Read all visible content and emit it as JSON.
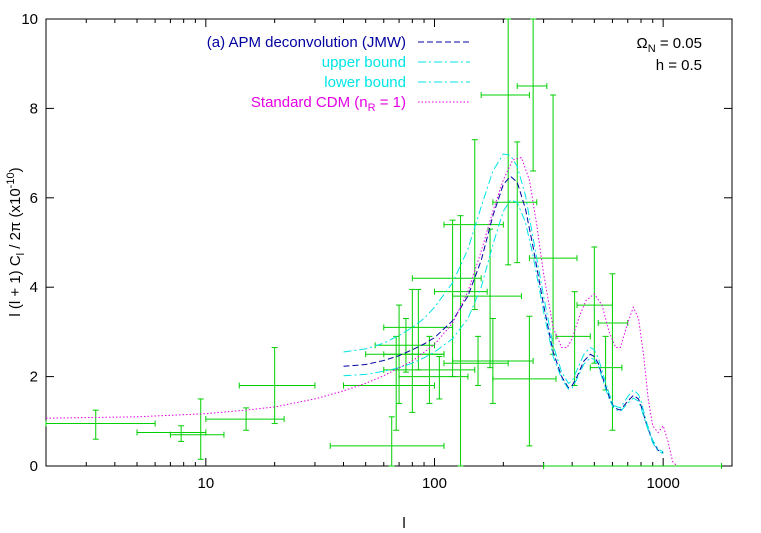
{
  "chart_data": {
    "type": "line",
    "xlabel": "l",
    "ylabel": {
      "pre": "l (l + 1) C",
      "sub": "l",
      "mid": " / 2π  (x10",
      "sup": "-10",
      "post": ")"
    },
    "xscale": "log",
    "xlim": [
      2,
      2000
    ],
    "ylim": [
      0,
      10
    ],
    "x_ticks": [
      {
        "value": 10,
        "label": "10"
      },
      {
        "value": 100,
        "label": "100"
      },
      {
        "value": 1000,
        "label": "1000"
      }
    ],
    "y_ticks": [
      {
        "value": 0,
        "label": "0"
      },
      {
        "value": 2,
        "label": "2"
      },
      {
        "value": 4,
        "label": "4"
      },
      {
        "value": 6,
        "label": "6"
      },
      {
        "value": 8,
        "label": "8"
      },
      {
        "value": 10,
        "label": "10"
      }
    ],
    "annotations": [
      {
        "parts": [
          {
            "t": "Ω"
          },
          {
            "t": "N",
            "sub": true
          },
          {
            "t": " = 0.05"
          }
        ]
      },
      {
        "parts": [
          {
            "t": "h = 0.5"
          }
        ]
      }
    ],
    "legend_position": "top-left-center",
    "series": [
      {
        "name": "(a) APM deconvolution (JMW)",
        "color": "#0000a0",
        "dash": "6,3",
        "x": [
          40,
          50,
          60,
          70,
          80,
          90,
          100,
          120,
          140,
          160,
          180,
          200,
          215,
          230,
          250,
          270,
          300,
          330,
          360,
          385,
          400,
          420,
          450,
          480,
          500,
          520,
          550,
          580,
          610,
          650,
          700,
          740,
          780,
          800,
          850,
          900,
          950,
          1000
        ],
        "y": [
          2.23,
          2.27,
          2.36,
          2.47,
          2.6,
          2.73,
          2.87,
          3.25,
          3.8,
          4.6,
          5.6,
          6.3,
          6.48,
          6.35,
          5.75,
          4.9,
          3.6,
          2.55,
          2.0,
          1.75,
          1.8,
          2.0,
          2.35,
          2.5,
          2.45,
          2.3,
          1.9,
          1.55,
          1.3,
          1.25,
          1.45,
          1.58,
          1.5,
          1.35,
          0.9,
          0.55,
          0.35,
          0.3
        ]
      },
      {
        "name": "upper bound",
        "color": "#00e5e5",
        "dash": "8,3,2,3",
        "x": [
          40,
          50,
          60,
          70,
          80,
          90,
          100,
          120,
          140,
          160,
          180,
          200,
          215,
          230,
          250,
          270,
          300,
          330,
          360,
          385,
          400,
          420,
          450,
          480,
          500,
          520,
          550,
          580,
          610,
          650,
          700,
          740,
          780,
          800,
          850,
          900,
          950,
          1000
        ],
        "y": [
          2.55,
          2.62,
          2.75,
          2.92,
          3.1,
          3.3,
          3.55,
          4.1,
          4.85,
          5.8,
          6.6,
          6.98,
          6.95,
          6.7,
          6.05,
          5.1,
          3.8,
          2.7,
          2.1,
          1.85,
          1.9,
          2.15,
          2.5,
          2.65,
          2.6,
          2.42,
          2.0,
          1.62,
          1.35,
          1.3,
          1.55,
          1.7,
          1.6,
          1.45,
          0.95,
          0.58,
          0.38,
          0.32
        ]
      },
      {
        "name": "lower bound",
        "color": "#00e5e5",
        "dash": "8,3,2,3",
        "x": [
          40,
          50,
          60,
          70,
          80,
          90,
          100,
          120,
          140,
          160,
          180,
          200,
          215,
          230,
          250,
          270,
          300,
          330,
          360,
          385,
          400,
          420,
          450,
          480,
          500,
          520,
          550,
          580,
          610,
          650,
          700,
          740,
          780,
          800,
          850,
          900,
          950,
          1000
        ],
        "y": [
          2.02,
          2.05,
          2.12,
          2.2,
          2.3,
          2.42,
          2.55,
          2.85,
          3.3,
          4.0,
          4.95,
          5.7,
          5.95,
          5.9,
          5.45,
          4.7,
          3.45,
          2.45,
          1.95,
          1.72,
          1.75,
          1.95,
          2.28,
          2.42,
          2.38,
          2.25,
          1.85,
          1.5,
          1.28,
          1.22,
          1.4,
          1.52,
          1.45,
          1.3,
          0.88,
          0.52,
          0.33,
          0.28
        ]
      },
      {
        "name": "Standard CDM (n_R = 1)",
        "name_parts": [
          {
            "t": "Standard CDM (n"
          },
          {
            "t": "R",
            "sub": true
          },
          {
            "t": " = 1)"
          }
        ],
        "color": "#e500e5",
        "dash": "1.5,2",
        "x": [
          2,
          5,
          10,
          15,
          20,
          30,
          40,
          50,
          60,
          80,
          100,
          120,
          140,
          160,
          180,
          200,
          220,
          240,
          260,
          280,
          300,
          330,
          360,
          380,
          400,
          430,
          460,
          500,
          540,
          580,
          620,
          650,
          700,
          740,
          780,
          820,
          860,
          900,
          950,
          1000,
          1050,
          1100,
          1150
        ],
        "y": [
          1.07,
          1.1,
          1.17,
          1.25,
          1.32,
          1.5,
          1.68,
          1.85,
          2.02,
          2.35,
          2.72,
          3.2,
          3.9,
          4.8,
          5.7,
          6.4,
          6.85,
          6.9,
          6.4,
          5.4,
          4.3,
          3.1,
          2.65,
          2.65,
          2.85,
          3.35,
          3.7,
          3.85,
          3.6,
          3.0,
          2.65,
          2.65,
          3.2,
          3.55,
          3.3,
          2.5,
          1.5,
          0.9,
          0.75,
          0.9,
          0.55,
          0.1,
          0.0
        ]
      }
    ],
    "data_points": {
      "name": "data",
      "color": "#00d000",
      "points": [
        {
          "x": 3.3,
          "xlo": 2.0,
          "xhi": 6.0,
          "y": 0.95,
          "ylo": 0.6,
          "yhi": 1.25
        },
        {
          "x": 7.8,
          "xlo": 5.0,
          "xhi": 10.0,
          "y": 0.75,
          "ylo": 0.55,
          "yhi": 0.9
        },
        {
          "x": 9.5,
          "xlo": 7.0,
          "xhi": 12.0,
          "y": 0.7,
          "ylo": 0.15,
          "yhi": 1.5
        },
        {
          "x": 15,
          "xlo": 10,
          "xhi": 22,
          "y": 1.05,
          "ylo": 0.8,
          "yhi": 1.3
        },
        {
          "x": 20,
          "xlo": 14,
          "xhi": 30,
          "y": 1.8,
          "ylo": 0.95,
          "yhi": 2.65
        },
        {
          "x": 65,
          "xlo": 35,
          "xhi": 110,
          "y": 0.45,
          "ylo": 0.0,
          "yhi": 1.1
        },
        {
          "x": 68,
          "xlo": 40,
          "xhi": 100,
          "y": 1.8,
          "ylo": 0.8,
          "yhi": 2.9
        },
        {
          "x": 70,
          "xlo": 50,
          "xhi": 110,
          "y": 2.5,
          "ylo": 1.4,
          "yhi": 3.6
        },
        {
          "x": 75,
          "xlo": 55,
          "xhi": 100,
          "y": 2.7,
          "ylo": 2.1,
          "yhi": 3.3
        },
        {
          "x": 80,
          "xlo": 60,
          "xhi": 110,
          "y": 2.5,
          "ylo": 1.2,
          "yhi": 3.95
        },
        {
          "x": 85,
          "xlo": 60,
          "xhi": 120,
          "y": 3.1,
          "ylo": 2.15,
          "yhi": 3.95
        },
        {
          "x": 95,
          "xlo": 60,
          "xhi": 150,
          "y": 2.15,
          "ylo": 1.4,
          "yhi": 2.9
        },
        {
          "x": 105,
          "xlo": 70,
          "xhi": 140,
          "y": 2.0,
          "ylo": 1.5,
          "yhi": 2.45
        },
        {
          "x": 120,
          "xlo": 80,
          "xhi": 160,
          "y": 4.2,
          "ylo": 2.0,
          "yhi": 5.5
        },
        {
          "x": 130,
          "xlo": 100,
          "xhi": 170,
          "y": 3.9,
          "ylo": 0.0,
          "yhi": 5.6
        },
        {
          "x": 150,
          "xlo": 110,
          "xhi": 200,
          "y": 5.4,
          "ylo": 3.5,
          "yhi": 7.3
        },
        {
          "x": 155,
          "xlo": 110,
          "xhi": 210,
          "y": 2.3,
          "ylo": 1.8,
          "yhi": 2.9
        },
        {
          "x": 175,
          "xlo": 120,
          "xhi": 240,
          "y": 3.8,
          "ylo": 2.2,
          "yhi": 5.3
        },
        {
          "x": 180,
          "xlo": 120,
          "xhi": 270,
          "y": 2.35,
          "ylo": 1.4,
          "yhi": 3.3
        },
        {
          "x": 210,
          "xlo": 160,
          "xhi": 260,
          "y": 8.3,
          "ylo": 4.5,
          "yhi": 10.0
        },
        {
          "x": 230,
          "xlo": 180,
          "xhi": 280,
          "y": 5.9,
          "ylo": 4.55,
          "yhi": 7.25
        },
        {
          "x": 260,
          "xlo": 180,
          "xhi": 340,
          "y": 1.95,
          "ylo": 0.45,
          "yhi": 3.35
        },
        {
          "x": 270,
          "xlo": 230,
          "xhi": 310,
          "y": 8.5,
          "ylo": 6.6,
          "yhi": 10.0
        },
        {
          "x": 330,
          "xlo": 260,
          "xhi": 420,
          "y": 4.65,
          "ylo": 2.5,
          "yhi": 8.3
        },
        {
          "x": 410,
          "xlo": 340,
          "xhi": 480,
          "y": 2.9,
          "ylo": 1.8,
          "yhi": 3.9
        },
        {
          "x": 500,
          "xlo": 420,
          "xhi": 600,
          "y": 3.6,
          "ylo": 2.3,
          "yhi": 4.9
        },
        {
          "x": 560,
          "xlo": 480,
          "xhi": 660,
          "y": 2.2,
          "ylo": 1.7,
          "yhi": 2.9
        },
        {
          "x": 600,
          "xlo": 520,
          "xhi": 700,
          "y": 3.2,
          "ylo": 0.8,
          "yhi": 4.3
        },
        {
          "x": 1200,
          "xlo": 300,
          "xhi": 1800,
          "y": 0.0,
          "ylo": 0.0,
          "yhi": 0.0
        }
      ]
    }
  }
}
